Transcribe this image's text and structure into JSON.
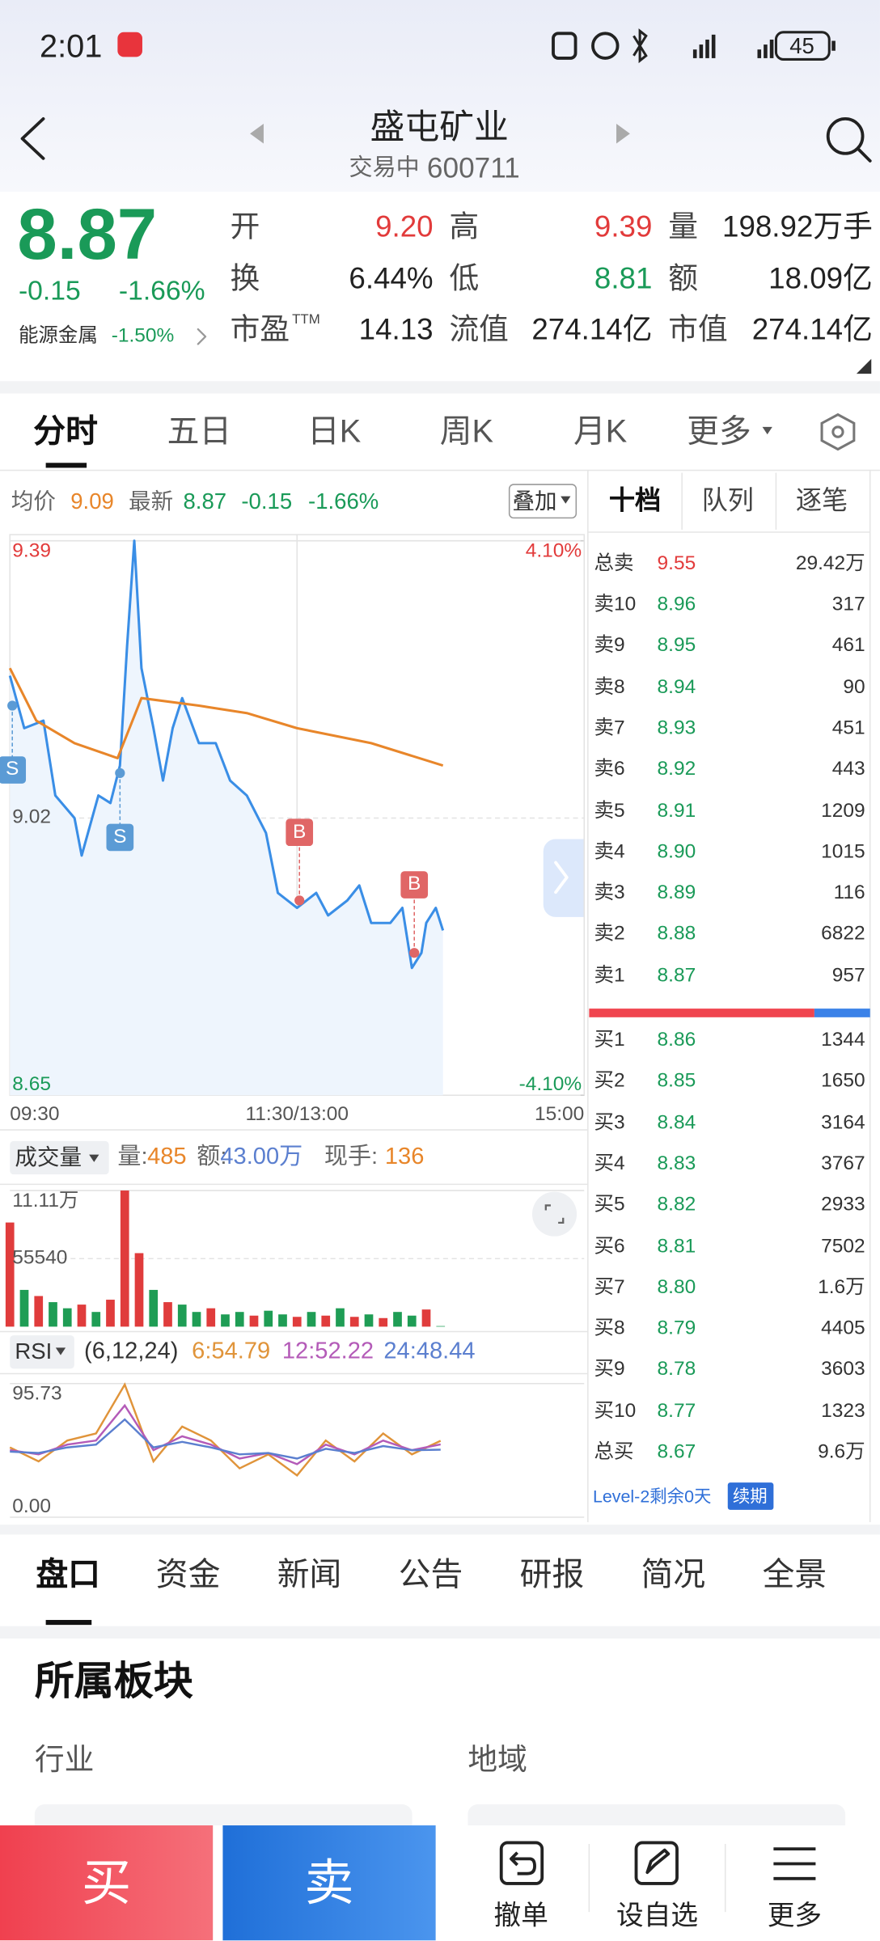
{
  "status_bar": {
    "time": "2:01",
    "battery": "45"
  },
  "header": {
    "title": "盛屯矿业",
    "status": "交易中",
    "code": "600711"
  },
  "quote": {
    "price": "8.87",
    "change": "-0.15",
    "change_pct": "-1.66%",
    "sector": "能源金属",
    "sector_change": "-1.50%",
    "fields": [
      {
        "label": "开",
        "value": "9.20"
      },
      {
        "label": "高",
        "value": "9.39"
      },
      {
        "label": "量",
        "value": "198.92万手"
      },
      {
        "label": "换",
        "value": "6.44%"
      },
      {
        "label": "低",
        "value": "8.81"
      },
      {
        "label": "额",
        "value": "18.09亿"
      },
      {
        "label": "市盈",
        "sup": "TTM",
        "value": "14.13"
      },
      {
        "label": "流值",
        "value": "274.14亿"
      },
      {
        "label": "市值",
        "value": "274.14亿"
      }
    ]
  },
  "chart_tabs": [
    "分时",
    "五日",
    "日K",
    "周K",
    "月K",
    "更多"
  ],
  "intraday_info": {
    "avg": "9.09",
    "last": "8.87",
    "change": "-0.15",
    "change_pct": "-1.66%",
    "overlay": "叠加"
  },
  "chart_data": [
    {
      "type": "line",
      "xlim": [
        0,
        240
      ],
      "xticks": [
        {
          "value": 0,
          "label": "09:30"
        },
        {
          "value": 120,
          "label": "11:30/13:00"
        },
        {
          "value": 240,
          "label": "15:00"
        }
      ],
      "ylim": [
        8.65,
        9.39
      ],
      "yticks": [
        8.65,
        9.02,
        9.39
      ],
      "y2lim": [
        -4.1,
        4.1
      ],
      "y2ticks": [
        {
          "value": -4.1,
          "label": "-4.10%"
        },
        {
          "value": 4.1,
          "label": "4.10%"
        }
      ],
      "series": [
        {
          "name": "最新",
          "color": "#3a8ee6",
          "x": [
            0,
            6,
            14,
            19,
            27,
            30,
            37,
            42,
            46,
            49,
            52,
            55,
            60,
            64,
            68,
            72,
            79,
            86,
            92,
            99,
            107,
            112,
            120,
            128,
            133,
            141,
            146,
            151,
            159,
            164,
            168,
            172,
            174,
            178,
            181
          ],
          "values": [
            9.21,
            9.14,
            9.15,
            9.05,
            9.02,
            8.97,
            9.05,
            9.04,
            9.09,
            9.25,
            9.39,
            9.22,
            9.14,
            9.07,
            9.14,
            9.18,
            9.12,
            9.12,
            9.07,
            9.05,
            9.0,
            8.92,
            8.9,
            8.92,
            8.89,
            8.91,
            8.93,
            8.88,
            8.88,
            8.9,
            8.82,
            8.84,
            8.88,
            8.9,
            8.87
          ]
        },
        {
          "name": "均价",
          "color": "#e8862a",
          "x": [
            0,
            11,
            27,
            45,
            55,
            79,
            99,
            120,
            151,
            181
          ],
          "values": [
            9.22,
            9.15,
            9.12,
            9.1,
            9.18,
            9.17,
            9.16,
            9.14,
            9.12,
            9.09
          ]
        }
      ],
      "annotations": [
        {
          "label": "S",
          "x": 1,
          "value": 9.17,
          "position": "below",
          "color": "#5b9bd5"
        },
        {
          "label": "S",
          "x": 46,
          "value": 9.08,
          "position": "below",
          "color": "#5b9bd5"
        },
        {
          "label": "B",
          "x": 121,
          "value": 8.91,
          "position": "above",
          "color": "#e06666"
        },
        {
          "label": "B",
          "x": 169,
          "value": 8.84,
          "position": "above",
          "color": "#e06666"
        }
      ]
    },
    {
      "type": "bar",
      "xlim": [
        0,
        240
      ],
      "ylim": [
        0,
        111100
      ],
      "yticks": [
        55540,
        {
          "value": 111100,
          "label": "11.11万"
        }
      ],
      "x": [
        0,
        6,
        12,
        18,
        24,
        30,
        36,
        42,
        48,
        54,
        60,
        66,
        72,
        78,
        84,
        90,
        96,
        102,
        108,
        114,
        120,
        126,
        132,
        138,
        144,
        150,
        156,
        162,
        168,
        174,
        180
      ],
      "values": [
        85000,
        30000,
        25000,
        20000,
        15000,
        18000,
        12000,
        22000,
        111100,
        60000,
        30000,
        20000,
        18000,
        12000,
        15000,
        10000,
        12000,
        9000,
        13000,
        10000,
        8000,
        12000,
        9000,
        15000,
        8000,
        10000,
        7000,
        12000,
        9000,
        14000,
        485
      ],
      "colors": [
        "#e03c3c",
        "#1f9d55",
        "#e03c3c",
        "#1f9d55",
        "#1f9d55",
        "#e03c3c",
        "#1f9d55",
        "#e03c3c",
        "#e03c3c",
        "#e03c3c",
        "#1f9d55",
        "#e03c3c",
        "#1f9d55",
        "#1f9d55",
        "#e03c3c",
        "#1f9d55",
        "#1f9d55",
        "#e03c3c",
        "#1f9d55",
        "#1f9d55",
        "#e03c3c",
        "#1f9d55",
        "#e03c3c",
        "#1f9d55",
        "#e03c3c",
        "#1f9d55",
        "#e03c3c",
        "#1f9d55",
        "#1f9d55",
        "#e03c3c",
        "#1f9d55"
      ]
    },
    {
      "type": "line",
      "xlim": [
        0,
        240
      ],
      "ylim": [
        0,
        95.73
      ],
      "yticks": [
        {
          "value": 0,
          "label": "0.00"
        },
        95.73
      ],
      "series": [
        {
          "color": "#e0943a",
          "x": [
            0,
            12,
            24,
            36,
            48,
            60,
            72,
            84,
            96,
            108,
            120,
            132,
            144,
            156,
            168,
            180
          ],
          "values": [
            50,
            40,
            55,
            60,
            95,
            40,
            65,
            55,
            35,
            45,
            30,
            55,
            40,
            60,
            45,
            54.79
          ]
        },
        {
          "color": "#b45bb8",
          "x": [
            0,
            12,
            24,
            36,
            48,
            60,
            72,
            84,
            96,
            108,
            120,
            132,
            144,
            156,
            168,
            180
          ],
          "values": [
            48,
            45,
            52,
            55,
            80,
            48,
            58,
            52,
            42,
            46,
            38,
            52,
            45,
            55,
            48,
            52.22
          ]
        },
        {
          "color": "#5b7fcf",
          "x": [
            0,
            12,
            24,
            36,
            48,
            60,
            72,
            84,
            96,
            108,
            120,
            132,
            144,
            156,
            168,
            180
          ],
          "values": [
            47,
            46,
            50,
            52,
            70,
            50,
            54,
            50,
            45,
            46,
            42,
            49,
            46,
            51,
            48,
            48.44
          ]
        }
      ]
    }
  ],
  "volume_info": {
    "title": "成交量",
    "vol_label": "量:",
    "vol": "485",
    "amount_label": "额:",
    "amount": "43.00万",
    "hand_label": "现手:",
    "hand": "136"
  },
  "rsi_info": {
    "title": "RSI",
    "params": "(6,12,24)",
    "values": [
      "6:54.79",
      "12:52.22",
      "24:48.44"
    ]
  },
  "order_book": {
    "tabs": [
      "十档",
      "队列",
      "逐笔"
    ],
    "total_sell": {
      "label": "总卖",
      "price": "9.55",
      "volume": "29.42万"
    },
    "asks": [
      {
        "label": "卖10",
        "price": "8.96",
        "volume": "317"
      },
      {
        "label": "卖9",
        "price": "8.95",
        "volume": "461"
      },
      {
        "label": "卖8",
        "price": "8.94",
        "volume": "90"
      },
      {
        "label": "卖7",
        "price": "8.93",
        "volume": "451"
      },
      {
        "label": "卖6",
        "price": "8.92",
        "volume": "443"
      },
      {
        "label": "卖5",
        "price": "8.91",
        "volume": "1209"
      },
      {
        "label": "卖4",
        "price": "8.90",
        "volume": "1015"
      },
      {
        "label": "卖3",
        "price": "8.89",
        "volume": "116"
      },
      {
        "label": "卖2",
        "price": "8.88",
        "volume": "6822"
      },
      {
        "label": "卖1",
        "price": "8.87",
        "volume": "957"
      }
    ],
    "bids": [
      {
        "label": "买1",
        "price": "8.86",
        "volume": "1344"
      },
      {
        "label": "买2",
        "price": "8.85",
        "volume": "1650"
      },
      {
        "label": "买3",
        "price": "8.84",
        "volume": "3164"
      },
      {
        "label": "买4",
        "price": "8.83",
        "volume": "3767"
      },
      {
        "label": "买5",
        "price": "8.82",
        "volume": "2933"
      },
      {
        "label": "买6",
        "price": "8.81",
        "volume": "7502"
      },
      {
        "label": "买7",
        "price": "8.80",
        "volume": "1.6万"
      },
      {
        "label": "买8",
        "price": "8.79",
        "volume": "4405"
      },
      {
        "label": "买9",
        "price": "8.78",
        "volume": "3603"
      },
      {
        "label": "买10",
        "price": "8.77",
        "volume": "1323"
      }
    ],
    "total_buy": {
      "label": "总买",
      "price": "8.67",
      "volume": "9.6万"
    },
    "level2": "Level-2剩余0天",
    "renew": "续期"
  },
  "bottom_tabs": [
    "盘口",
    "资金",
    "新闻",
    "公告",
    "研报",
    "简况",
    "全景"
  ],
  "section": {
    "title": "所属板块",
    "columns": [
      "行业",
      "地域"
    ]
  },
  "action_bar": {
    "buy": "买",
    "sell": "卖",
    "items": [
      "撤单",
      "设自选",
      "更多"
    ]
  }
}
